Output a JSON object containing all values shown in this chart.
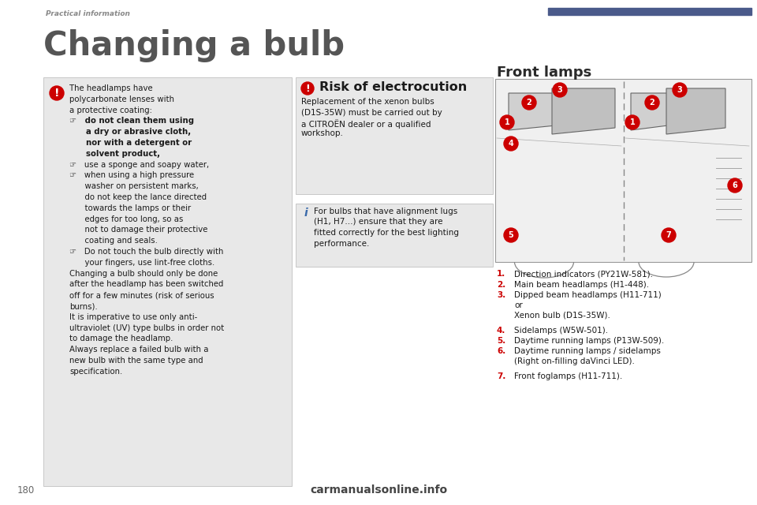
{
  "bg_color": "#ffffff",
  "header_text": "Practical information",
  "header_color": "#888888",
  "header_bar_color": "#4a5a8a",
  "title_text": "Changing a bulb",
  "title_color": "#555555",
  "section_right_title": "Front lamps",
  "left_box_bg": "#e8e8e8",
  "warning_color": "#cc0000",
  "info_color": "#3a6aaa",
  "right_top_box_title": "Risk of electrocution",
  "right_top_box_lines": [
    "Replacement of the xenon bulbs",
    "(D1S-35W) must be carried out by",
    "a CITROËN dealer or a qualified",
    "workshop."
  ],
  "right_bottom_box_lines": [
    "For bulbs that have alignment lugs",
    "(H1, H7...) ensure that they are",
    "fitted correctly for the best lighting",
    "performance."
  ],
  "left_box_content": [
    {
      "text": "The headlamps have",
      "indent": 0,
      "bold": false
    },
    {
      "text": "polycarbonate lenses with",
      "indent": 0,
      "bold": false
    },
    {
      "text": "a protective coating:",
      "indent": 0,
      "bold": false
    },
    {
      "text": "☞   do not clean them using",
      "indent": 1,
      "bold": true
    },
    {
      "text": "      a dry or abrasive cloth,",
      "indent": 1,
      "bold": true
    },
    {
      "text": "      nor with a detergent or",
      "indent": 1,
      "bold": true
    },
    {
      "text": "      solvent product,",
      "indent": 1,
      "bold": true
    },
    {
      "text": "☞   use a sponge and soapy water,",
      "indent": 1,
      "bold": false
    },
    {
      "text": "☞   when using a high pressure",
      "indent": 1,
      "bold": false
    },
    {
      "text": "      washer on persistent marks,",
      "indent": 1,
      "bold": false
    },
    {
      "text": "      do not keep the lance directed",
      "indent": 1,
      "bold": false
    },
    {
      "text": "      towards the lamps or their",
      "indent": 1,
      "bold": false
    },
    {
      "text": "      edges for too long, so as",
      "indent": 1,
      "bold": false
    },
    {
      "text": "      not to damage their protective",
      "indent": 1,
      "bold": false
    },
    {
      "text": "      coating and seals.",
      "indent": 1,
      "bold": false
    },
    {
      "text": "☞   Do not touch the bulb directly with",
      "indent": 1,
      "bold": false
    },
    {
      "text": "      your fingers, use lint-free cloths.",
      "indent": 1,
      "bold": false
    },
    {
      "text": "Changing a bulb should only be done",
      "indent": 0,
      "bold": false
    },
    {
      "text": "after the headlamp has been switched",
      "indent": 0,
      "bold": false
    },
    {
      "text": "off for a few minutes (risk of serious",
      "indent": 0,
      "bold": false
    },
    {
      "text": "burns).",
      "indent": 0,
      "bold": false
    },
    {
      "text": "It is imperative to use only anti-",
      "indent": 0,
      "bold": false
    },
    {
      "text": "ultraviolet (UV) type bulbs in order not",
      "indent": 0,
      "bold": false
    },
    {
      "text": "to damage the headlamp.",
      "indent": 0,
      "bold": false
    },
    {
      "text": "Always replace a failed bulb with a",
      "indent": 0,
      "bold": false
    },
    {
      "text": "new bulb with the same type and",
      "indent": 0,
      "bold": false
    },
    {
      "text": "specification.",
      "indent": 0,
      "bold": false
    }
  ],
  "list_items": [
    {
      "num": "1.",
      "lines": [
        "Direction indicators (PY21W-581)."
      ]
    },
    {
      "num": "2.",
      "lines": [
        "Main beam headlamps (H1-448)."
      ]
    },
    {
      "num": "3.",
      "lines": [
        "Dipped beam headlamps (H11-711)",
        "or",
        "Xenon bulb (D1S-35W)."
      ]
    },
    {
      "num": "4.",
      "lines": [
        "Sidelamps (W5W-501)."
      ]
    },
    {
      "num": "5.",
      "lines": [
        "Daytime running lamps (P13W-509)."
      ]
    },
    {
      "num": "6.",
      "lines": [
        "Daytime running lamps / sidelamps",
        "(Right on-filling daVinci LED)."
      ]
    },
    {
      "num": "7.",
      "lines": [
        "Front foglamps (H11-711)."
      ]
    }
  ],
  "footer_text": "carmanualsonline.info",
  "page_number": "180"
}
